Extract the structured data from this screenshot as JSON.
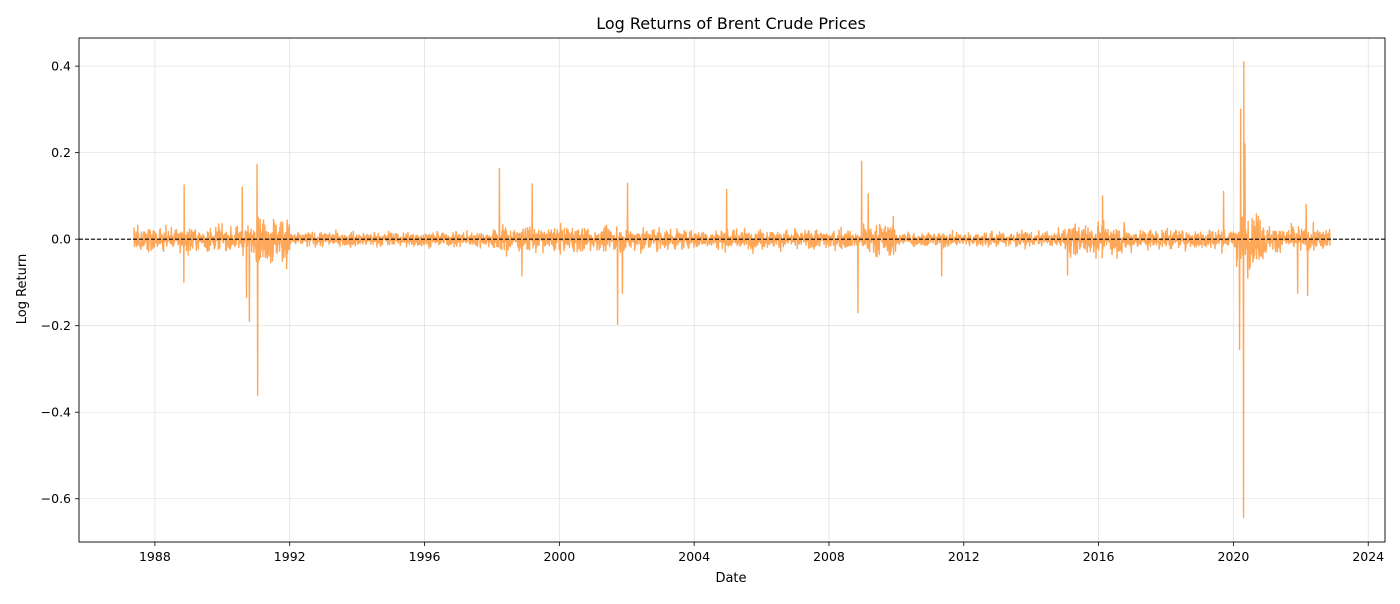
{
  "chart_data": {
    "type": "line",
    "title": "Log Returns of Brent Crude Prices",
    "xlabel": "Date",
    "ylabel": "Log Return",
    "xlim": [
      "1985-10-01",
      "2024-07-01"
    ],
    "ylim": [
      -0.7,
      0.465
    ],
    "grid": true,
    "x_ticks": [
      "1988",
      "1992",
      "1996",
      "2000",
      "2004",
      "2008",
      "2012",
      "2016",
      "2020",
      "2024"
    ],
    "y_ticks": [
      0.4,
      0.2,
      0.0,
      -0.2,
      -0.4,
      -0.6
    ],
    "y_tick_labels": [
      "0.4",
      "0.2",
      "0.0",
      "−0.2",
      "−0.4",
      "−0.6"
    ],
    "reference_line": {
      "y": 0.0,
      "style": "dashed",
      "color": "#000000"
    },
    "series": [
      {
        "color": "#ffa24f",
        "x_start": "1987-05-20",
        "x_end": "2022-11-14",
        "typical_band": [
          {
            "period": "1987-1990",
            "low": -0.05,
            "high": 0.05
          },
          {
            "period": "1990-1991",
            "low": -0.1,
            "high": 0.1
          },
          {
            "period": "1992-1997",
            "low": -0.03,
            "high": 0.03
          },
          {
            "period": "1998-2002",
            "low": -0.05,
            "high": 0.05
          },
          {
            "period": "2003-2008",
            "low": -0.04,
            "high": 0.04
          },
          {
            "period": "2009",
            "low": -0.06,
            "high": 0.08
          },
          {
            "period": "2010-2014",
            "low": -0.03,
            "high": 0.03
          },
          {
            "period": "2015-2016",
            "low": -0.06,
            "high": 0.07
          },
          {
            "period": "2017-2019",
            "low": -0.04,
            "high": 0.04
          },
          {
            "period": "2020",
            "low": -0.1,
            "high": 0.1
          },
          {
            "period": "2021-2022",
            "low": -0.05,
            "high": 0.05
          }
        ],
        "extremes": [
          {
            "date": "1988-11-15",
            "value": 0.125
          },
          {
            "date": "1988-11-10",
            "value": -0.1
          },
          {
            "date": "1990-08-06",
            "value": 0.12
          },
          {
            "date": "1990-10-22",
            "value": -0.19
          },
          {
            "date": "1990-09-20",
            "value": -0.135
          },
          {
            "date": "1991-01-11",
            "value": 0.173
          },
          {
            "date": "1991-01-17",
            "value": -0.361
          },
          {
            "date": "1998-03-23",
            "value": 0.163
          },
          {
            "date": "1998-11-20",
            "value": -0.085
          },
          {
            "date": "1999-03-12",
            "value": 0.128
          },
          {
            "date": "2001-09-24",
            "value": -0.197
          },
          {
            "date": "2001-11-15",
            "value": -0.125
          },
          {
            "date": "2002-01-10",
            "value": 0.129
          },
          {
            "date": "2004-12-20",
            "value": 0.115
          },
          {
            "date": "2008-11-10",
            "value": -0.17
          },
          {
            "date": "2008-12-22",
            "value": 0.18
          },
          {
            "date": "2009-03-01",
            "value": 0.105
          },
          {
            "date": "2011-05-05",
            "value": -0.085
          },
          {
            "date": "2015-01-28",
            "value": -0.083
          },
          {
            "date": "2016-02-12",
            "value": 0.1
          },
          {
            "date": "2019-09-16",
            "value": 0.11
          },
          {
            "date": "2020-03-09",
            "value": -0.255
          },
          {
            "date": "2020-03-20",
            "value": 0.3
          },
          {
            "date": "2020-04-21",
            "value": -0.643
          },
          {
            "date": "2020-04-22",
            "value": 0.41
          },
          {
            "date": "2020-05-05",
            "value": 0.22
          },
          {
            "date": "2020-06-05",
            "value": -0.09
          },
          {
            "date": "2021-11-26",
            "value": -0.125
          },
          {
            "date": "2022-03-01",
            "value": 0.08
          },
          {
            "date": "2022-03-15",
            "value": -0.13
          }
        ]
      }
    ]
  }
}
